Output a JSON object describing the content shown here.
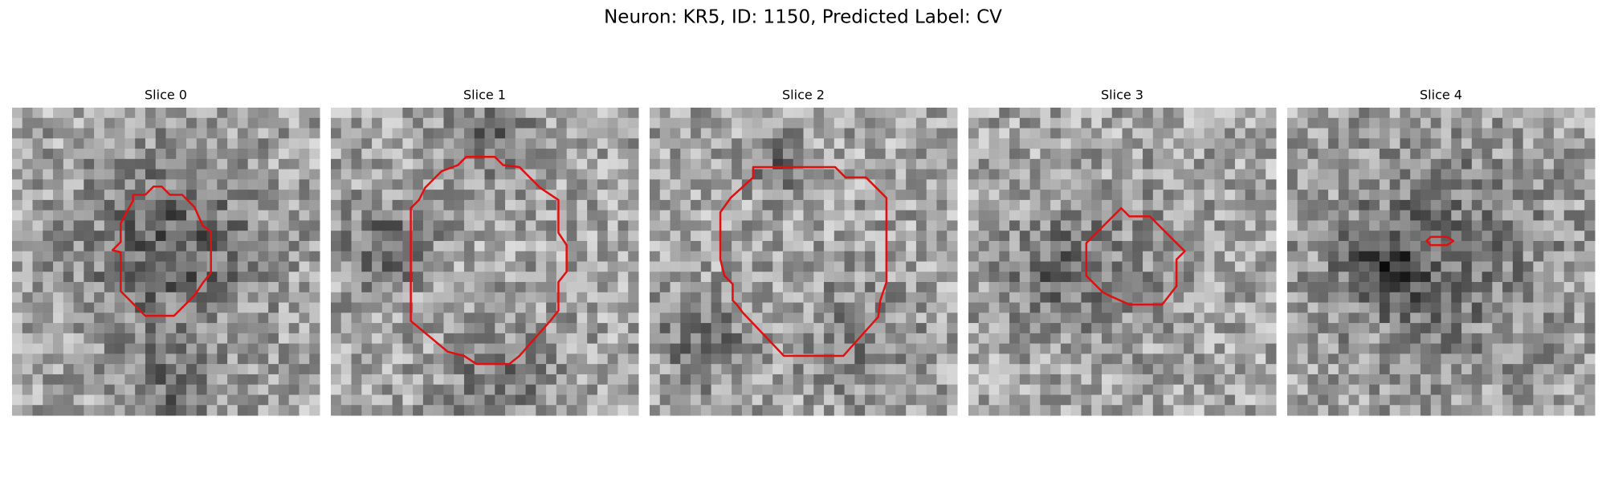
{
  "title": "Neuron: KR5, ID: 1150, Predicted Label: CV",
  "panels": [
    {
      "title": "Slice 0"
    },
    {
      "title": "Slice 1"
    },
    {
      "title": "Slice 2"
    },
    {
      "title": "Slice 3"
    },
    {
      "title": "Slice 4"
    }
  ]
}
